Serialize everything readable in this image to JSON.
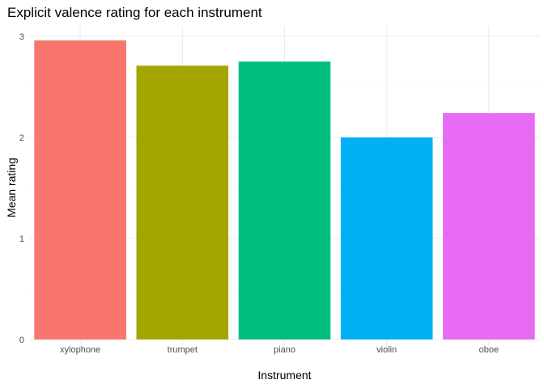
{
  "chart_data": {
    "type": "bar",
    "title": "Explicit valence rating for each instrument",
    "xlabel": "Instrument",
    "ylabel": "Mean rating",
    "categories": [
      "xylophone",
      "trumpet",
      "piano",
      "violin",
      "oboe"
    ],
    "values": [
      2.96,
      2.71,
      2.75,
      2.0,
      2.24
    ],
    "colors": [
      "#F8766D",
      "#A3A500",
      "#00BF7D",
      "#00B0F6",
      "#E76BF3"
    ],
    "ylim": [
      0,
      3.1
    ],
    "yticks": [
      0,
      1,
      2,
      3
    ],
    "grid": true,
    "legend": "none"
  }
}
